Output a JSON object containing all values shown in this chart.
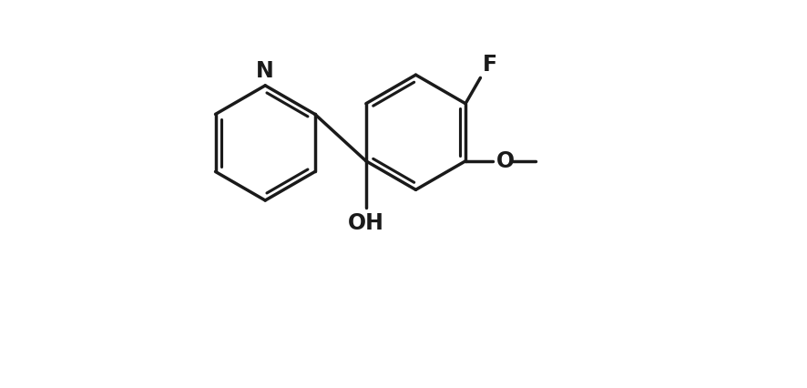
{
  "background_color": "#ffffff",
  "line_color": "#1a1a1a",
  "line_width": 2.5,
  "font_size_atoms": 17,
  "xlim": [
    -1.0,
    11.5
  ],
  "ylim": [
    0.5,
    9.5
  ]
}
